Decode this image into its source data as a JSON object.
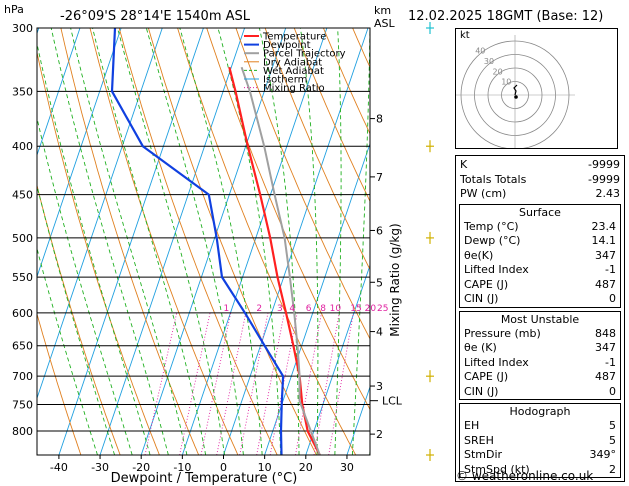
{
  "header": {
    "pressure_unit": "hPa",
    "location": "-26°09'S  28°14'E  1540m  ASL",
    "height_unit": "km",
    "height_unit2": "ASL",
    "datetime": "12.02.2025  18GMT  (Base: 12)"
  },
  "credit": "© weatheronline.co.uk",
  "colors": {
    "temperature": "#ff2020",
    "dewpoint": "#1040e0",
    "parcel": "#a0a0a0",
    "dry_adiabat": "#e08020",
    "wet_adiabat": "#20b020",
    "isotherm": "#20a0e0",
    "mixing_ratio": "#e020a0",
    "wind": "#d0b000",
    "wind_top": "#20c0d0"
  },
  "chart_data": {
    "type": "line",
    "xlabel": "Dewpoint / Temperature (°C)",
    "ylabel": "Mixing Ratio (g/kg)",
    "legend": [
      "Temperature",
      "Dewpoint",
      "Parcel Trajectory",
      "Dry Adiabat",
      "Wet Adiabat",
      "Isotherm",
      "Mixing Ratio"
    ],
    "legend_position": "top-left",
    "x_ticks": [
      "-40",
      "-30",
      "-20",
      "-10",
      "0",
      "10",
      "20",
      "30"
    ],
    "x_tick_values": [
      -40,
      -30,
      -20,
      -10,
      0,
      10,
      20,
      30
    ],
    "p_ticks": [
      "300",
      "350",
      "400",
      "450",
      "500",
      "550",
      "600",
      "650",
      "700",
      "750",
      "800"
    ],
    "p_tick_values": [
      300,
      350,
      400,
      450,
      500,
      550,
      600,
      650,
      700,
      750,
      800
    ],
    "p_range": [
      300,
      848
    ],
    "skew_deg_per_log": 33.8,
    "km_ticks": [
      {
        "label": "8",
        "p": 374
      },
      {
        "label": "7",
        "p": 431
      },
      {
        "label": "6",
        "p": 491
      },
      {
        "label": "5",
        "p": 557
      },
      {
        "label": "4",
        "p": 628
      },
      {
        "label": "3",
        "p": 717
      },
      {
        "label": "2",
        "p": 806
      }
    ],
    "lcl": {
      "label": "LCL",
      "p": 743
    },
    "mixing_ratio_labels": [
      {
        "label": "1",
        "t": -11
      },
      {
        "label": "2",
        "t": -3
      },
      {
        "label": "3",
        "t": 2
      },
      {
        "label": "4",
        "t": 5
      },
      {
        "label": "6",
        "t": 9
      },
      {
        "label": "8",
        "t": 12.5
      },
      {
        "label": "10",
        "t": 15.5
      },
      {
        "label": "15",
        "t": 20.5
      },
      {
        "label": "20",
        "t": 24
      },
      {
        "label": "25",
        "t": 27
      }
    ],
    "mixing_ratio_label_p": 600,
    "series": [
      {
        "name": "Temperature",
        "points": [
          {
            "p": 848,
            "t": 23.4
          },
          {
            "p": 800,
            "t": 18.5
          },
          {
            "p": 750,
            "t": 15.0
          },
          {
            "p": 700,
            "t": 12.0
          },
          {
            "p": 650,
            "t": 8.0
          },
          {
            "p": 600,
            "t": 3.5
          },
          {
            "p": 550,
            "t": -1.5
          },
          {
            "p": 500,
            "t": -6.5
          },
          {
            "p": 450,
            "t": -12.5
          },
          {
            "p": 400,
            "t": -19.5
          },
          {
            "p": 350,
            "t": -27.0
          },
          {
            "p": 330,
            "t": -30.5
          }
        ]
      },
      {
        "name": "Dewpoint",
        "points": [
          {
            "p": 848,
            "t": 14.1
          },
          {
            "p": 800,
            "t": 12.0
          },
          {
            "p": 750,
            "t": 10.0
          },
          {
            "p": 700,
            "t": 8.0
          },
          {
            "p": 650,
            "t": 1.0
          },
          {
            "p": 600,
            "t": -6.5
          },
          {
            "p": 550,
            "t": -15.0
          },
          {
            "p": 500,
            "t": -19.5
          },
          {
            "p": 450,
            "t": -25.0
          },
          {
            "p": 400,
            "t": -45.0
          },
          {
            "p": 350,
            "t": -57.0
          },
          {
            "p": 300,
            "t": -61.5
          }
        ]
      },
      {
        "name": "Parcel Trajectory",
        "points": [
          {
            "p": 848,
            "t": 23.4
          },
          {
            "p": 743,
            "t": 14.0
          },
          {
            "p": 700,
            "t": 12.0
          },
          {
            "p": 650,
            "t": 9.0
          },
          {
            "p": 600,
            "t": 5.5
          },
          {
            "p": 550,
            "t": 1.5
          },
          {
            "p": 500,
            "t": -3.0
          },
          {
            "p": 450,
            "t": -9.0
          },
          {
            "p": 400,
            "t": -15.5
          },
          {
            "p": 350,
            "t": -23.5
          },
          {
            "p": 330,
            "t": -27.5
          }
        ]
      }
    ],
    "wind_barbs_p": [
      300,
      400,
      500,
      700,
      848
    ]
  },
  "indices": [
    {
      "label": "K",
      "value": "-9999"
    },
    {
      "label": "Totals Totals",
      "value": "-9999"
    },
    {
      "label": "PW (cm)",
      "value": "2.43"
    }
  ],
  "surface": {
    "title": "Surface",
    "rows": [
      {
        "label": "Temp (°C)",
        "value": "23.4"
      },
      {
        "label": "Dewp (°C)",
        "value": "14.1"
      },
      {
        "label": "θe(K)",
        "value": "347"
      },
      {
        "label": "Lifted Index",
        "value": "-1"
      },
      {
        "label": "CAPE (J)",
        "value": "487"
      },
      {
        "label": "CIN (J)",
        "value": "0"
      }
    ]
  },
  "most_unstable": {
    "title": "Most Unstable",
    "rows": [
      {
        "label": "Pressure (mb)",
        "value": "848"
      },
      {
        "label": "θe (K)",
        "value": "347"
      },
      {
        "label": "Lifted Index",
        "value": "-1"
      },
      {
        "label": "CAPE (J)",
        "value": "487"
      },
      {
        "label": "CIN (J)",
        "value": "0"
      }
    ]
  },
  "hodograph": {
    "title": "Hodograph",
    "corner_label": "kt",
    "ring_labels": [
      "10",
      "20",
      "30",
      "40"
    ],
    "rows": [
      {
        "label": "EH",
        "value": "5"
      },
      {
        "label": "SREH",
        "value": "5"
      },
      {
        "label": "StmDir",
        "value": "349°"
      },
      {
        "label": "StmSpd (kt)",
        "value": "2"
      }
    ]
  }
}
